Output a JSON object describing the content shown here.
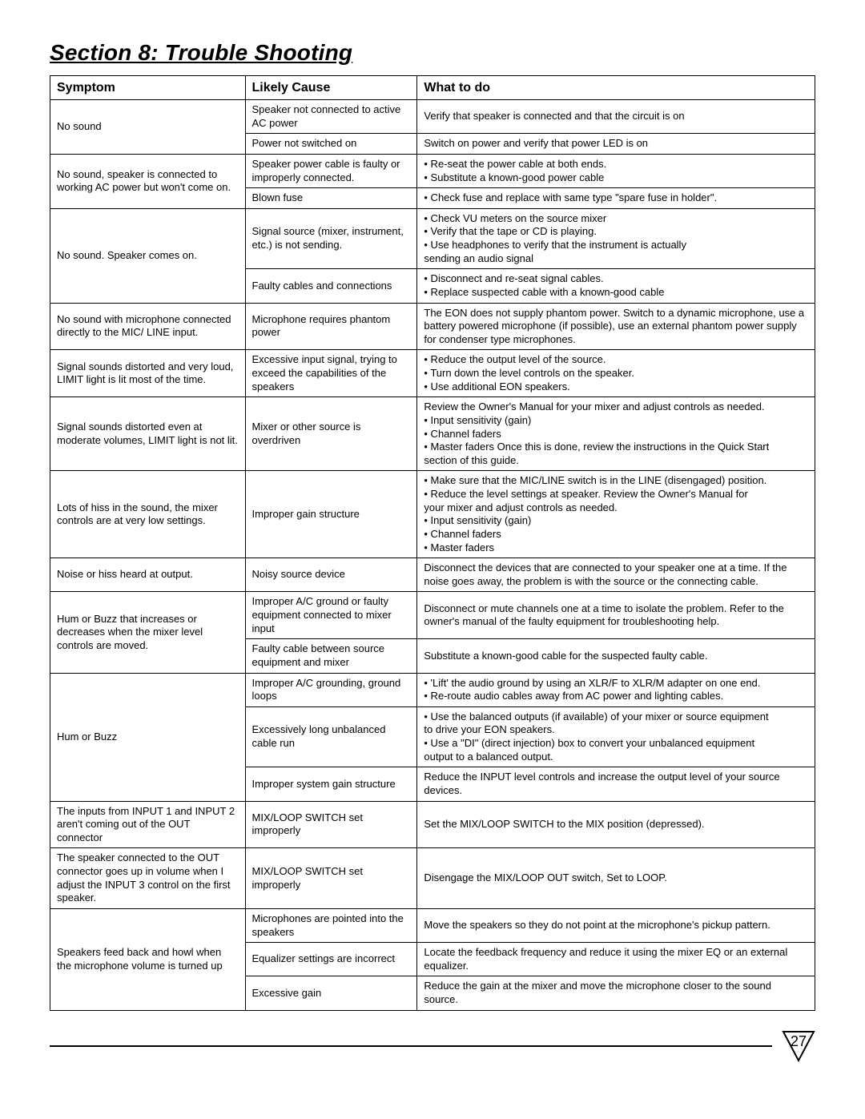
{
  "title": "Section 8: Trouble Shooting",
  "columns": {
    "symptom": "Symptom",
    "cause": "Likely Cause",
    "what": "What to do"
  },
  "page_number": "27",
  "colors": {
    "border": "#000000",
    "text": "#000000",
    "bg": "#ffffff"
  },
  "rows": [
    {
      "symptom": "No sound",
      "symptom_rowspan": 2,
      "cause": "Speaker not connected to active AC power",
      "what": "Verify that speaker is connected and that the circuit is on"
    },
    {
      "cause": "Power not switched on",
      "what": "Switch on power and verify that power LED is on"
    },
    {
      "symptom": "No sound, speaker is connected to working AC power but won't come on.",
      "symptom_rowspan": 2,
      "cause": "Speaker power cable is faulty or improperly connected.",
      "what": "• Re-seat the power cable at both ends.\n• Substitute a known-good power cable"
    },
    {
      "cause": "Blown fuse",
      "what": "• Check fuse and replace with same type \"spare fuse in holder\"."
    },
    {
      "symptom": "No sound. Speaker comes on.",
      "symptom_rowspan": 2,
      "cause": "Signal source (mixer, instrument, etc.) is not sending.",
      "what": "• Check VU meters on the source mixer\n• Verify that the tape or CD is playing.\n• Use headphones to verify that the instrument is actually\n   sending an audio signal"
    },
    {
      "cause": "Faulty cables and connections",
      "what": "• Disconnect and re-seat signal cables.\n• Replace suspected cable with a known-good cable"
    },
    {
      "symptom": "No sound with microphone connected directly to the MIC/ LINE input.",
      "cause": "Microphone requires phantom power",
      "what": "The EON does not supply phantom power. Switch to a dynamic microphone, use a battery powered microphone (if possible), use an external phantom power supply for condenser type microphones."
    },
    {
      "symptom": "Signal sounds distorted and very loud, LIMIT light is lit most of the time.",
      "cause": "Excessive input signal, trying to exceed the capabilities of the speakers",
      "what": "• Reduce the output level of the source.\n• Turn down the level controls on the speaker.\n• Use additional EON speakers."
    },
    {
      "symptom": "Signal sounds distorted even at moderate volumes, LIMIT light is not lit.",
      "cause": "Mixer or other source is overdriven",
      "what": "Review the Owner's Manual for your mixer and adjust controls as needed.\n• Input sensitivity (gain)\n• Channel faders\n• Master faders Once this is done, review the instructions in the Quick Start\n   section of this guide."
    },
    {
      "symptom": "Lots of hiss in the sound, the mixer controls are at very low settings.",
      "cause": "Improper gain structure",
      "what": "• Make sure that the MIC/LINE switch is in the LINE (disengaged) position.\n• Reduce the level settings at speaker. Review the Owner's Manual for\n   your mixer and adjust controls as needed.\n• Input sensitivity (gain)\n• Channel faders\n• Master faders"
    },
    {
      "symptom": "Noise or hiss heard at output.",
      "cause": "Noisy source device",
      "what": "Disconnect the devices that are connected to your speaker one at a time. If the noise goes away, the problem is with the source or the connecting cable."
    },
    {
      "symptom": "Hum or Buzz that increases or decreases when the mixer level controls are moved.",
      "symptom_rowspan": 2,
      "cause": "Improper A/C ground or faulty equipment connected to mixer input",
      "what": "Disconnect or mute channels one at a time to isolate the problem. Refer to the owner's manual of the faulty equipment for troubleshooting help."
    },
    {
      "cause": "Faulty cable between source equipment and mixer",
      "what": "Substitute a known-good cable for the suspected faulty cable."
    },
    {
      "symptom": "Hum or Buzz",
      "symptom_rowspan": 3,
      "cause": "Improper A/C grounding, ground loops",
      "what": "• 'Lift' the audio ground by using an XLR/F to XLR/M adapter on one end.\n• Re-route audio cables away from AC power and lighting cables."
    },
    {
      "cause": "Excessively long unbalanced cable run",
      "what": "• Use the balanced outputs (if available) of your mixer or source equipment\n   to drive your EON speakers.\n• Use a \"DI\" (direct injection) box to convert your unbalanced equipment\n   output to a balanced output."
    },
    {
      "cause": "Improper system gain structure",
      "what": "Reduce the INPUT level controls and increase the output level of your source devices."
    },
    {
      "symptom": "The inputs from INPUT 1 and INPUT 2 aren't coming out of the OUT connector",
      "cause": "MIX/LOOP SWITCH set improperly",
      "what": "Set the MIX/LOOP SWITCH to the MIX position (depressed)."
    },
    {
      "symptom": "The speaker connected to the OUT connector goes up in volume when I adjust the INPUT 3 control on the first speaker.",
      "cause": "MIX/LOOP SWITCH set improperly",
      "what": "Disengage the MIX/LOOP OUT switch, Set to LOOP."
    },
    {
      "symptom": "Speakers feed back and howl when the microphone volume is turned up",
      "symptom_rowspan": 3,
      "cause": "Microphones are pointed into the speakers",
      "what": "Move the speakers so they do not point at the microphone's pickup pattern."
    },
    {
      "cause": "Equalizer settings are incorrect",
      "what": "Locate the feedback frequency and reduce it using the mixer EQ or an external equalizer."
    },
    {
      "cause": "Excessive gain",
      "what": "Reduce the gain at the mixer and move the microphone closer to the sound source."
    }
  ]
}
